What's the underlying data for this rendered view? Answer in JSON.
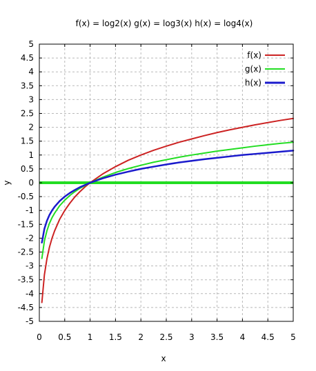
{
  "chart_data": {
    "type": "line",
    "title": "f(x) = log2(x)  g(x) = log3(x)  h(x) = log4(x)",
    "xlabel": "x",
    "ylabel": "y",
    "xlim": [
      0,
      5
    ],
    "ylim": [
      -5,
      5
    ],
    "x_ticks": [
      "0",
      "0.5",
      "1",
      "1.5",
      "2",
      "2.5",
      "3",
      "3.5",
      "4",
      "4.5",
      "5"
    ],
    "y_ticks": [
      "5",
      "4.5",
      "4",
      "3.5",
      "3",
      "2.5",
      "2",
      "1.5",
      "1",
      "0.5",
      "0",
      "-0.5",
      "-1",
      "-1.5",
      "-2",
      "-2.5",
      "-3",
      "-3.5",
      "-4",
      "-4.5",
      "-5"
    ],
    "grid": true,
    "legend_position": "top-right",
    "zero_line": {
      "y": 0,
      "color": "#22dd22"
    },
    "x_samples": [
      0.05,
      0.1,
      0.15,
      0.2,
      0.25,
      0.3,
      0.4,
      0.5,
      0.6,
      0.7,
      0.8,
      0.9,
      1.0,
      1.25,
      1.5,
      1.75,
      2.0,
      2.25,
      2.5,
      2.75,
      3.0,
      3.25,
      3.5,
      3.75,
      4.0,
      4.25,
      4.5,
      4.75,
      5.0
    ],
    "series": [
      {
        "name": "f(x)",
        "color": "#cc2222",
        "values": [
          -4.32,
          -3.32,
          -2.74,
          -2.32,
          -2.0,
          -1.74,
          -1.32,
          -1.0,
          -0.74,
          -0.51,
          -0.32,
          -0.15,
          0.0,
          0.32,
          0.58,
          0.81,
          1.0,
          1.17,
          1.32,
          1.46,
          1.58,
          1.7,
          1.81,
          1.91,
          2.0,
          2.09,
          2.17,
          2.25,
          2.32
        ]
      },
      {
        "name": "g(x)",
        "color": "#22dd22",
        "values": [
          -2.73,
          -2.1,
          -1.73,
          -1.46,
          -1.26,
          -1.1,
          -0.83,
          -0.63,
          -0.46,
          -0.32,
          -0.2,
          -0.1,
          0.0,
          0.2,
          0.37,
          0.51,
          0.63,
          0.74,
          0.83,
          0.92,
          1.0,
          1.07,
          1.14,
          1.2,
          1.26,
          1.32,
          1.37,
          1.42,
          1.46
        ]
      },
      {
        "name": "h(x)",
        "color": "#1a1acc",
        "values": [
          -2.16,
          -1.66,
          -1.37,
          -1.16,
          -1.0,
          -0.87,
          -0.66,
          -0.5,
          -0.37,
          -0.26,
          -0.16,
          -0.08,
          0.0,
          0.16,
          0.29,
          0.4,
          0.5,
          0.58,
          0.66,
          0.73,
          0.79,
          0.85,
          0.9,
          0.95,
          1.0,
          1.04,
          1.08,
          1.12,
          1.16
        ]
      }
    ]
  }
}
